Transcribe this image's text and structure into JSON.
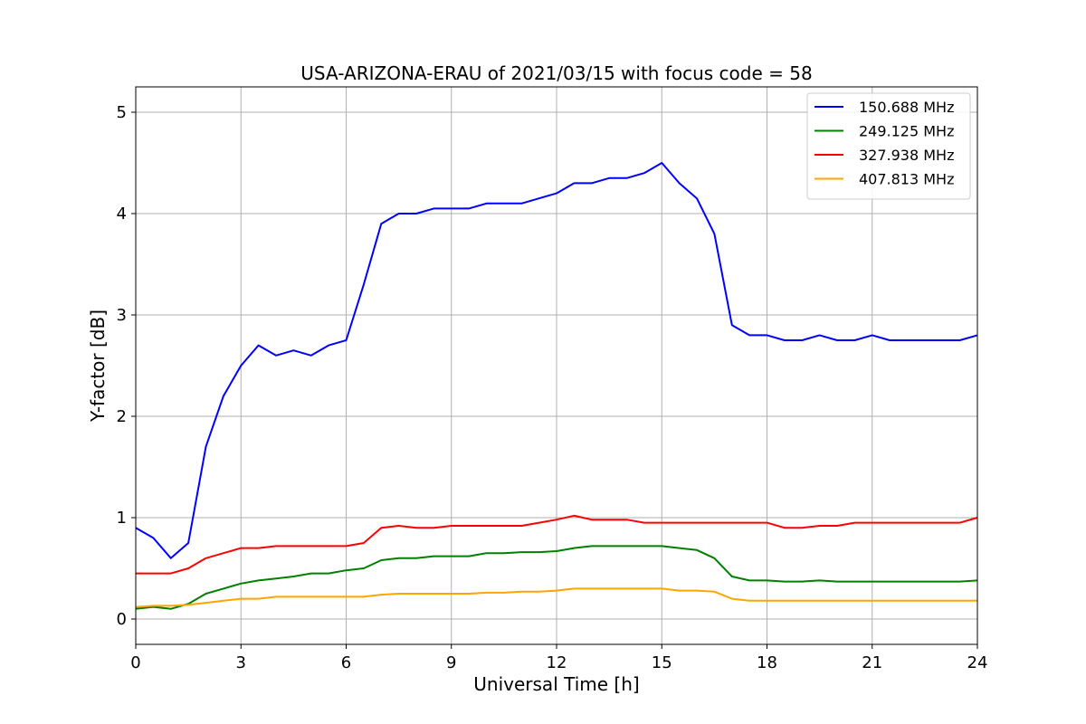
{
  "chart_data": {
    "type": "line",
    "title": "USA-ARIZONA-ERAU of 2021/03/15 with focus code = 58",
    "xlabel": "Universal Time [h]",
    "ylabel": "Y-factor [dB]",
    "xlim": [
      0,
      24
    ],
    "ylim": [
      -0.25,
      5.25
    ],
    "xticks": [
      0,
      3,
      6,
      9,
      12,
      15,
      18,
      21,
      24
    ],
    "yticks": [
      0,
      1,
      2,
      3,
      4,
      5
    ],
    "grid": true,
    "legend_position": "top-right",
    "series": [
      {
        "name": "150.688 MHz",
        "color": "#0000ff",
        "x": [
          0,
          0.5,
          1,
          1.5,
          2,
          2.5,
          3,
          3.5,
          4,
          4.5,
          5,
          5.5,
          6,
          6.5,
          7,
          7.5,
          8,
          8.5,
          9,
          9.5,
          10,
          10.5,
          11,
          11.5,
          12,
          12.5,
          13,
          13.5,
          14,
          14.5,
          15,
          15.5,
          16,
          16.5,
          17,
          17.5,
          18,
          18.5,
          19,
          19.5,
          20,
          20.5,
          21,
          21.5,
          22,
          22.5,
          23,
          23.5,
          24
        ],
        "y": [
          0.9,
          0.8,
          0.6,
          0.75,
          1.7,
          2.2,
          2.5,
          2.7,
          2.6,
          2.65,
          2.6,
          2.7,
          2.75,
          3.3,
          3.9,
          4.0,
          4.0,
          4.05,
          4.05,
          4.05,
          4.1,
          4.1,
          4.1,
          4.15,
          4.2,
          4.3,
          4.3,
          4.35,
          4.35,
          4.4,
          4.5,
          4.3,
          4.15,
          3.8,
          2.9,
          2.8,
          2.8,
          2.75,
          2.75,
          2.8,
          2.75,
          2.75,
          2.8,
          2.75,
          2.75,
          2.75,
          2.75,
          2.75,
          2.8
        ]
      },
      {
        "name": "249.125 MHz",
        "color": "#008000",
        "x": [
          0,
          0.5,
          1,
          1.5,
          2,
          2.5,
          3,
          3.5,
          4,
          4.5,
          5,
          5.5,
          6,
          6.5,
          7,
          7.5,
          8,
          8.5,
          9,
          9.5,
          10,
          10.5,
          11,
          11.5,
          12,
          12.5,
          13,
          13.5,
          14,
          14.5,
          15,
          15.5,
          16,
          16.5,
          17,
          17.5,
          18,
          18.5,
          19,
          19.5,
          20,
          20.5,
          21,
          21.5,
          22,
          22.5,
          23,
          23.5,
          24
        ],
        "y": [
          0.1,
          0.12,
          0.1,
          0.15,
          0.25,
          0.3,
          0.35,
          0.38,
          0.4,
          0.42,
          0.45,
          0.45,
          0.48,
          0.5,
          0.58,
          0.6,
          0.6,
          0.62,
          0.62,
          0.62,
          0.65,
          0.65,
          0.66,
          0.66,
          0.67,
          0.7,
          0.72,
          0.72,
          0.72,
          0.72,
          0.72,
          0.7,
          0.68,
          0.6,
          0.42,
          0.38,
          0.38,
          0.37,
          0.37,
          0.38,
          0.37,
          0.37,
          0.37,
          0.37,
          0.37,
          0.37,
          0.37,
          0.37,
          0.38
        ]
      },
      {
        "name": "327.938 MHz",
        "color": "#ff0000",
        "x": [
          0,
          0.5,
          1,
          1.5,
          2,
          2.5,
          3,
          3.5,
          4,
          4.5,
          5,
          5.5,
          6,
          6.5,
          7,
          7.5,
          8,
          8.5,
          9,
          9.5,
          10,
          10.5,
          11,
          11.5,
          12,
          12.5,
          13,
          13.5,
          14,
          14.5,
          15,
          15.5,
          16,
          16.5,
          17,
          17.5,
          18,
          18.5,
          19,
          19.5,
          20,
          20.5,
          21,
          21.5,
          22,
          22.5,
          23,
          23.5,
          24
        ],
        "y": [
          0.45,
          0.45,
          0.45,
          0.5,
          0.6,
          0.65,
          0.7,
          0.7,
          0.72,
          0.72,
          0.72,
          0.72,
          0.72,
          0.75,
          0.9,
          0.92,
          0.9,
          0.9,
          0.92,
          0.92,
          0.92,
          0.92,
          0.92,
          0.95,
          0.98,
          1.02,
          0.98,
          0.98,
          0.98,
          0.95,
          0.95,
          0.95,
          0.95,
          0.95,
          0.95,
          0.95,
          0.95,
          0.9,
          0.9,
          0.92,
          0.92,
          0.95,
          0.95,
          0.95,
          0.95,
          0.95,
          0.95,
          0.95,
          1.0
        ]
      },
      {
        "name": "407.813 MHz",
        "color": "#ffa500",
        "x": [
          0,
          0.5,
          1,
          1.5,
          2,
          2.5,
          3,
          3.5,
          4,
          4.5,
          5,
          5.5,
          6,
          6.5,
          7,
          7.5,
          8,
          8.5,
          9,
          9.5,
          10,
          10.5,
          11,
          11.5,
          12,
          12.5,
          13,
          13.5,
          14,
          14.5,
          15,
          15.5,
          16,
          16.5,
          17,
          17.5,
          18,
          18.5,
          19,
          19.5,
          20,
          20.5,
          21,
          21.5,
          22,
          22.5,
          23,
          23.5,
          24
        ],
        "y": [
          0.12,
          0.13,
          0.13,
          0.14,
          0.16,
          0.18,
          0.2,
          0.2,
          0.22,
          0.22,
          0.22,
          0.22,
          0.22,
          0.22,
          0.24,
          0.25,
          0.25,
          0.25,
          0.25,
          0.25,
          0.26,
          0.26,
          0.27,
          0.27,
          0.28,
          0.3,
          0.3,
          0.3,
          0.3,
          0.3,
          0.3,
          0.28,
          0.28,
          0.27,
          0.2,
          0.18,
          0.18,
          0.18,
          0.18,
          0.18,
          0.18,
          0.18,
          0.18,
          0.18,
          0.18,
          0.18,
          0.18,
          0.18,
          0.18
        ]
      }
    ]
  }
}
